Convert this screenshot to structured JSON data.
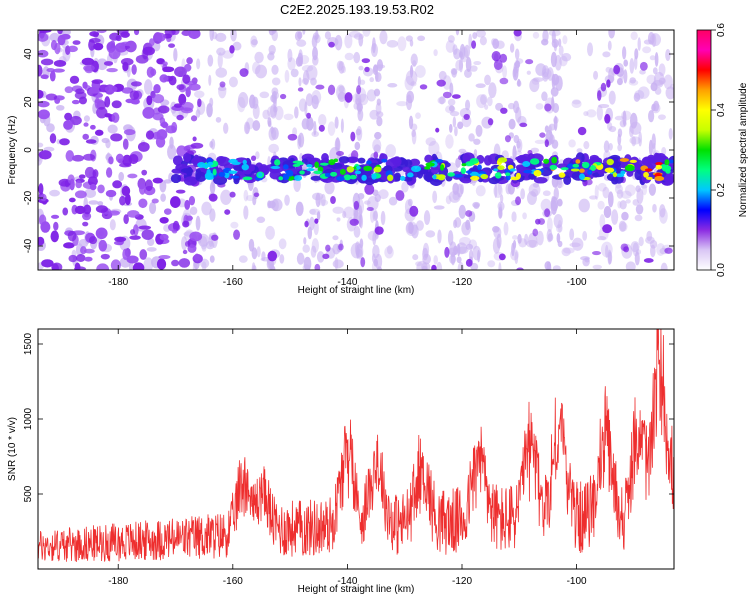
{
  "title": "C2E2.2025.193.19.53.R02",
  "colors": {
    "snr_line": "#ee2e2e",
    "background_blob": "#c9b2f2",
    "strong_blob": "#7e22e6",
    "band_blob": "#5b1de0",
    "colormap": [
      "#ffffff",
      "#d9c6f5",
      "#8b2be2",
      "#0000ff",
      "#00c8ff",
      "#00ff80",
      "#00e000",
      "#c8ff00",
      "#ffff00",
      "#ffa000",
      "#ff0000",
      "#ff00b4",
      "#ff0064"
    ]
  },
  "chart_data": [
    {
      "type": "heatmap",
      "name": "spectrogram",
      "xlabel": "Height of straight line (km)",
      "ylabel": "Frequency (Hz)",
      "xlim": [
        -194,
        -83
      ],
      "ylim": [
        -50,
        50
      ],
      "x_ticks": [
        -180,
        -160,
        -140,
        -120,
        -100
      ],
      "y_ticks": [
        -40,
        -20,
        0,
        20,
        40
      ],
      "colorbar": {
        "label": "Normalized spectral amplitude",
        "range": [
          0.0,
          0.6
        ],
        "ticks": [
          "0.0",
          "0.2",
          "0.4",
          "0.6"
        ]
      },
      "features": {
        "signal_band_center_hz": -8,
        "signal_band_halfwidth_hz": 5,
        "signal_start_km": -170,
        "noise_dense_region_km": [
          -194,
          -170
        ]
      }
    },
    {
      "type": "line",
      "name": "snr",
      "xlabel": "Height of straight line (km)",
      "ylabel": "SNR (10 * v/v)",
      "xlim": [
        -194,
        -83
      ],
      "ylim": [
        0,
        1600
      ],
      "x_ticks": [
        -180,
        -160,
        -140,
        -120,
        -100
      ],
      "y_ticks": [
        500,
        1000,
        1500
      ],
      "baseline": [
        {
          "x": -194,
          "y": 150
        },
        {
          "x": -170,
          "y": 200
        },
        {
          "x": -160,
          "y": 230
        },
        {
          "x": -150,
          "y": 270
        },
        {
          "x": -140,
          "y": 280
        },
        {
          "x": -130,
          "y": 300
        },
        {
          "x": -120,
          "y": 320
        },
        {
          "x": -110,
          "y": 330
        },
        {
          "x": -100,
          "y": 340
        },
        {
          "x": -90,
          "y": 330
        },
        {
          "x": -86,
          "y": 450
        },
        {
          "x": -84,
          "y": 350
        }
      ],
      "peaks": [
        {
          "x": -158,
          "y": 720
        },
        {
          "x": -155,
          "y": 600
        },
        {
          "x": -140,
          "y": 930
        },
        {
          "x": -135,
          "y": 830
        },
        {
          "x": -127,
          "y": 760
        },
        {
          "x": -117,
          "y": 860
        },
        {
          "x": -108,
          "y": 950
        },
        {
          "x": -103,
          "y": 1080
        },
        {
          "x": -95,
          "y": 1000
        },
        {
          "x": -89,
          "y": 1080
        },
        {
          "x": -85.5,
          "y": 1600
        },
        {
          "x": -84.5,
          "y": 980
        }
      ]
    }
  ]
}
